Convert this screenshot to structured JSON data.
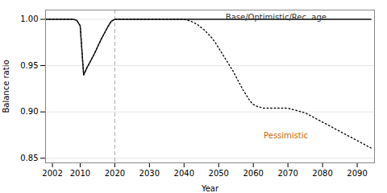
{
  "chart_data": {
    "type": "line",
    "title": "",
    "xlabel": "Year",
    "ylabel": "Balance ratio",
    "xlim": [
      2000,
      2095
    ],
    "ylim": [
      0.845,
      1.01
    ],
    "xticks": [
      2002,
      2010,
      2020,
      2030,
      2040,
      2050,
      2060,
      2070,
      2080,
      2090
    ],
    "yticks": [
      0.85,
      {
        "value": 0.9,
        "label": "0.90"
      },
      0.95,
      {
        "value": 1,
        "label": "1.00"
      }
    ],
    "grid": "y",
    "x": [
      2000,
      2001,
      2002,
      2003,
      2004,
      2005,
      2006,
      2007,
      2008,
      2009,
      2010,
      2011,
      2012,
      2013,
      2014,
      2015,
      2016,
      2017,
      2018,
      2019,
      2020,
      2021,
      2022,
      2023,
      2024,
      2025,
      2026,
      2027,
      2028,
      2029,
      2030,
      2031,
      2032,
      2033,
      2034,
      2035,
      2036,
      2037,
      2038,
      2039,
      2040,
      2041,
      2042,
      2043,
      2044,
      2045,
      2046,
      2047,
      2048,
      2049,
      2050,
      2051,
      2052,
      2053,
      2054,
      2055,
      2056,
      2057,
      2058,
      2059,
      2060,
      2061,
      2062,
      2063,
      2064,
      2065,
      2066,
      2067,
      2068,
      2069,
      2070,
      2071,
      2072,
      2073,
      2074,
      2075,
      2076,
      2077,
      2078,
      2079,
      2080,
      2081,
      2082,
      2083,
      2084,
      2085,
      2086,
      2087,
      2088,
      2089,
      2090,
      2091,
      2092,
      2093,
      2094
    ],
    "series": [
      {
        "color": "#111111",
        "line_style": "solid",
        "values": [
          1.0,
          1.0,
          1.0,
          1.0,
          1.0,
          1.0,
          1.0,
          1.0,
          1.0,
          0.999,
          0.993,
          0.94,
          0.948,
          0.955,
          0.962,
          0.97,
          0.978,
          0.985,
          0.992,
          0.998,
          1.0,
          1.0,
          1.0,
          1.0,
          1.0,
          1.0,
          1.0,
          1.0,
          1.0,
          1.0,
          1.0,
          1.0,
          1.0,
          1.0,
          1.0,
          1.0,
          1.0,
          1.0,
          1.0,
          1.0,
          1.0,
          1.0,
          1.0,
          1.0,
          1.0,
          1.0,
          1.0,
          1.0,
          1.0,
          1.0,
          1.0,
          1.0,
          1.0,
          1.0,
          1.0,
          1.0,
          1.0,
          1.0,
          1.0,
          1.0,
          1.0,
          1.0,
          1.0,
          1.0,
          1.0,
          1.0,
          1.0,
          1.0,
          1.0,
          1.0,
          1.0,
          1.0,
          1.0,
          1.0,
          1.0,
          1.0,
          1.0,
          1.0,
          1.0,
          1.0,
          1.0,
          1.0,
          1.0,
          1.0,
          1.0,
          1.0,
          1.0,
          1.0,
          1.0,
          1.0,
          1.0,
          1.0,
          1.0,
          1.0,
          1.0
        ]
      },
      {
        "color": "#111111",
        "line_style": "dotted",
        "values": [
          1.0,
          1.0,
          1.0,
          1.0,
          1.0,
          1.0,
          1.0,
          1.0,
          1.0,
          0.999,
          0.993,
          0.94,
          0.948,
          0.955,
          0.962,
          0.97,
          0.978,
          0.985,
          0.992,
          0.998,
          1.0,
          1.0,
          1.0,
          1.0,
          1.0,
          1.0,
          1.0,
          1.0,
          1.0,
          1.0,
          1.0,
          1.0,
          1.0,
          1.0,
          1.0,
          1.0,
          1.0,
          1.0,
          1.0,
          1.0,
          1.0,
          0.999,
          0.998,
          0.996,
          0.994,
          0.991,
          0.988,
          0.984,
          0.98,
          0.975,
          0.969,
          0.963,
          0.957,
          0.951,
          0.945,
          0.938,
          0.931,
          0.924,
          0.918,
          0.912,
          0.908,
          0.906,
          0.905,
          0.904,
          0.904,
          0.904,
          0.904,
          0.904,
          0.904,
          0.904,
          0.904,
          0.903,
          0.902,
          0.901,
          0.9,
          0.899,
          0.897,
          0.895,
          0.893,
          0.891,
          0.889,
          0.887,
          0.885,
          0.883,
          0.881,
          0.879,
          0.877,
          0.875,
          0.873,
          0.871,
          0.869,
          0.867,
          0.865,
          0.863,
          0.861
        ]
      }
    ],
    "vline": {
      "x": 2020,
      "color": "#aaaaaa",
      "line_style": "dashed"
    },
    "annotations": [
      {
        "text": "Base/Optimistic/Rec. age",
        "x": 2052,
        "y": 1.002,
        "color": "#333333"
      },
      {
        "text": "Pessimistic",
        "x": 2063,
        "y": 0.874,
        "color": "#cc6600"
      }
    ]
  }
}
